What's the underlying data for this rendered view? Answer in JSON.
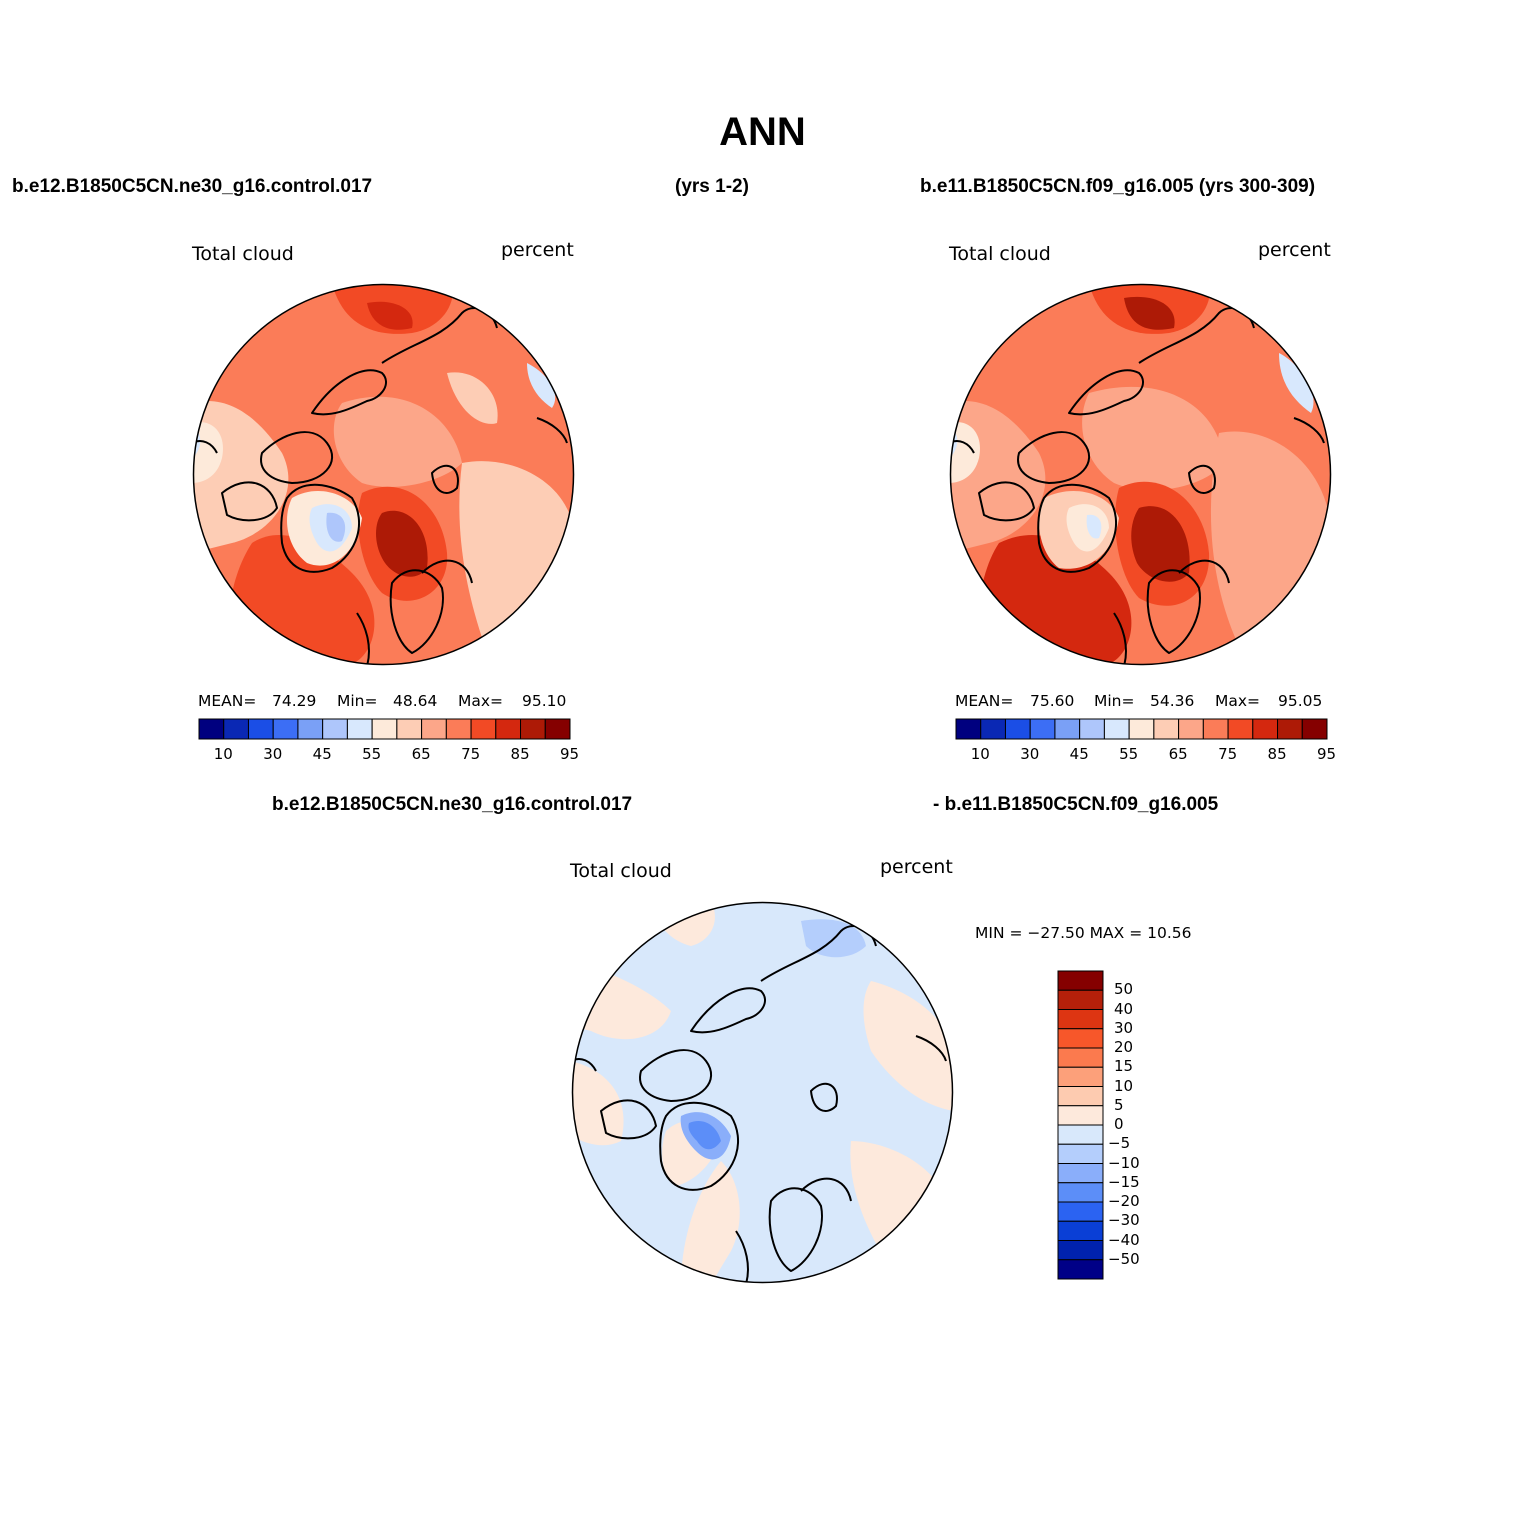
{
  "title": "ANN",
  "top_left": {
    "case": "b.e12.B1850C5CN.ne30_g16.control.017",
    "years": "(yrs 1-2)",
    "field": "Total cloud",
    "units": "percent",
    "stats": {
      "mean_label": "MEAN=",
      "mean": "74.29",
      "min_label": "Min=",
      "min": "48.64",
      "max_label": "Max=",
      "max": "95.10"
    }
  },
  "top_right": {
    "case": "b.e11.B1850C5CN.f09_g16.005 (yrs 300-309)",
    "field": "Total cloud",
    "units": "percent",
    "stats": {
      "mean_label": "MEAN=",
      "mean": "75.60",
      "min_label": "Min=",
      "min": "54.36",
      "max_label": "Max=",
      "max": "95.05"
    }
  },
  "abs_colorbar": {
    "colors": [
      "#00007f",
      "#0a28b4",
      "#1b4ee6",
      "#3c6ef5",
      "#7aa0f6",
      "#aec6fb",
      "#d8e8fd",
      "#fdeada",
      "#fdcdb5",
      "#fca689",
      "#fb7c58",
      "#f24a25",
      "#d4280f",
      "#ad1a06",
      "#850000"
    ],
    "ticks": [
      "10",
      "30",
      "45",
      "55",
      "65",
      "75",
      "85",
      "95"
    ]
  },
  "diff": {
    "case_left": "b.e12.B1850C5CN.ne30_g16.control.017",
    "case_right": "- b.e11.B1850C5CN.f09_g16.005",
    "field": "Total cloud",
    "units": "percent",
    "minmax": "MIN = −27.50 MAX =  10.56"
  },
  "diff_colorbar": {
    "colors": [
      "#850000",
      "#b5200a",
      "#dd3512",
      "#f7572a",
      "#fb7a4e",
      "#fca07a",
      "#fdcbb0",
      "#fde9dc",
      "#d8e8fb",
      "#b4cefc",
      "#8aaefa",
      "#5c8ef8",
      "#2b63f2",
      "#0a3fd6",
      "#0022ae",
      "#000087"
    ],
    "labels": [
      "50",
      "40",
      "30",
      "20",
      "15",
      "10",
      "5",
      "0",
      "−5",
      "−10",
      "−15",
      "−20",
      "−30",
      "−40",
      "−50"
    ]
  }
}
